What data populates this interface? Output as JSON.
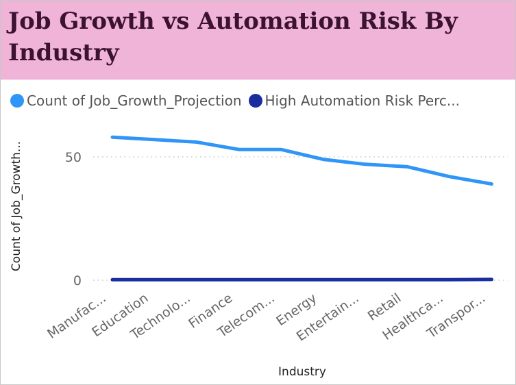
{
  "title": "Job Growth vs Automation Risk By Industry",
  "legend": [
    {
      "label": "Count of Job_Growth_Projection",
      "color": "#2f95f6"
    },
    {
      "label": "High Automation Risk Perc...",
      "color": "#1a2e9e"
    }
  ],
  "chart_data": {
    "type": "line",
    "title": "Job Growth vs Automation Risk By Industry",
    "xlabel": "Industry",
    "ylabel": "Count of Job_Growth...",
    "categories": [
      "Manufac...",
      "Education",
      "Technolo...",
      "Finance",
      "Telecom...",
      "Energy",
      "Entertain...",
      "Retail",
      "Healthca...",
      "Transpor..."
    ],
    "series": [
      {
        "name": "Count of Job_Growth_Projection",
        "color": "#2f95f6",
        "values": [
          58,
          57,
          56,
          53,
          53,
          49,
          47,
          46,
          42,
          39
        ]
      },
      {
        "name": "High Automation Risk Perc...",
        "color": "#1a2e9e",
        "values": [
          0.2,
          0.2,
          0.2,
          0.2,
          0.2,
          0.2,
          0.2,
          0.2,
          0.2,
          0.3
        ]
      }
    ],
    "yticks": [
      0,
      50
    ],
    "ylim": [
      0,
      60
    ],
    "grid": "horizontal-dotted",
    "legend_position": "top-left"
  }
}
